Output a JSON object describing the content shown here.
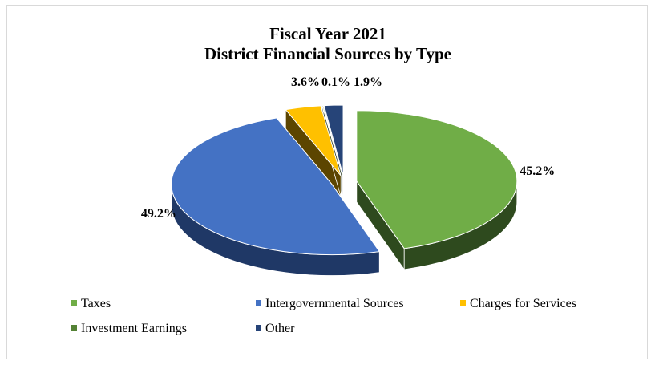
{
  "chart_data": {
    "type": "pie",
    "title": [
      "Fiscal Year 2021",
      "District Financial Sources by Type"
    ],
    "categories": [
      "Taxes",
      "Intergovernmental Sources",
      "Charges for Services",
      "Investment Earnings",
      "Other"
    ],
    "values": [
      45.2,
      49.2,
      3.6,
      0.1,
      1.9
    ],
    "labels": [
      "45.2%",
      "49.2%",
      "3.6%",
      "0.1%",
      "1.9%"
    ],
    "legend": [
      "Taxes",
      "Intergovernmental Sources",
      "Charges for Services",
      "Investment Earnings",
      "Other"
    ],
    "legend_position": "bottom",
    "style": "3d-exploded",
    "colors": [
      "#70ad47",
      "#4472c4",
      "#ffc000",
      "#548235",
      "#264478"
    ],
    "side_colors": [
      "#2e4a1e",
      "#1f3866",
      "#5c4500",
      "#23361a",
      "#142541"
    ]
  }
}
